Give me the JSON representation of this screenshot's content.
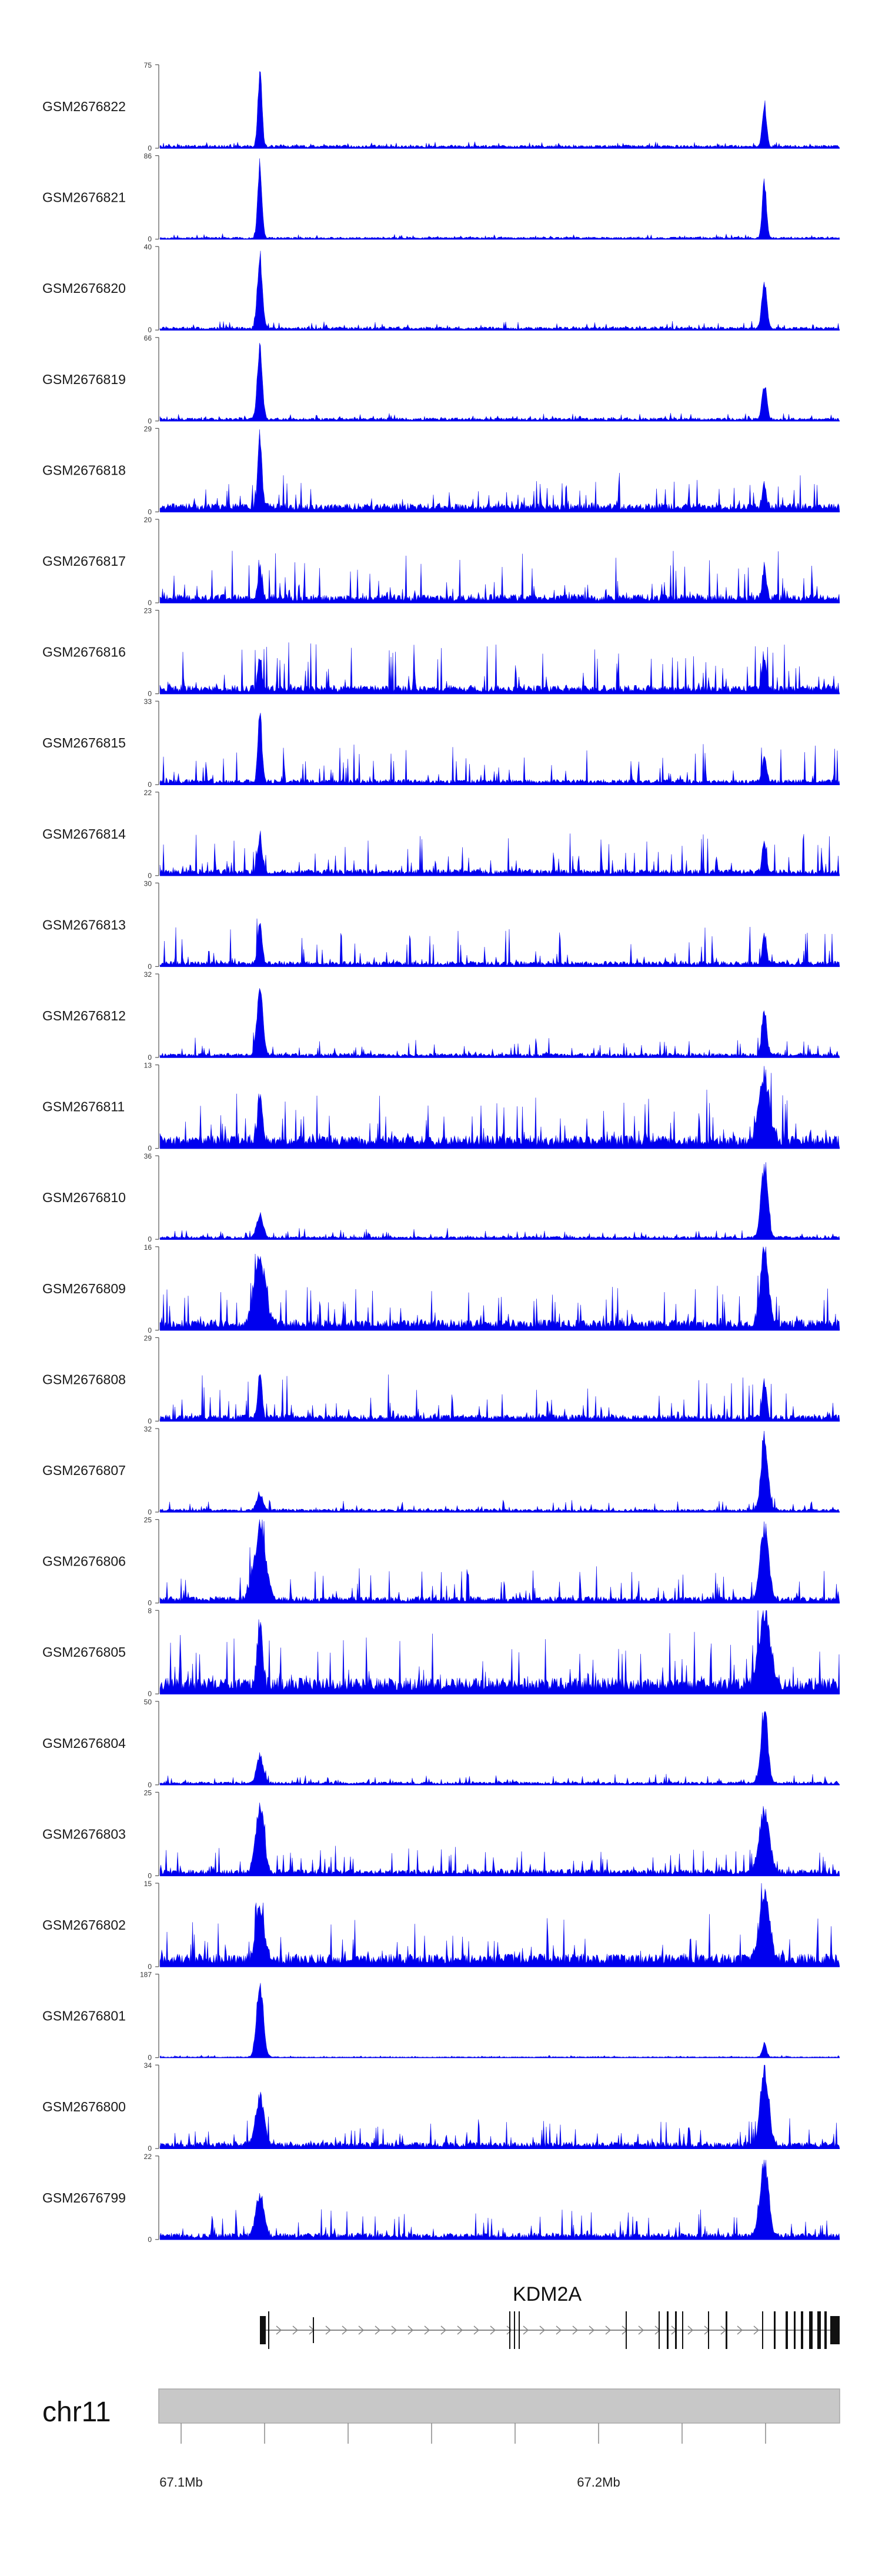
{
  "chart_data": {
    "type": "area",
    "tracks": [
      {
        "name": "GSM2676822",
        "ymin": 0,
        "ymax": 75
      },
      {
        "name": "GSM2676821",
        "ymin": 0,
        "ymax": 86
      },
      {
        "name": "GSM2676820",
        "ymin": 0,
        "ymax": 40
      },
      {
        "name": "GSM2676819",
        "ymin": 0,
        "ymax": 66
      },
      {
        "name": "GSM2676818",
        "ymin": 0,
        "ymax": 29
      },
      {
        "name": "GSM2676817",
        "ymin": 0,
        "ymax": 20
      },
      {
        "name": "GSM2676816",
        "ymin": 0,
        "ymax": 23
      },
      {
        "name": "GSM2676815",
        "ymin": 0,
        "ymax": 33
      },
      {
        "name": "GSM2676814",
        "ymin": 0,
        "ymax": 22
      },
      {
        "name": "GSM2676813",
        "ymin": 0,
        "ymax": 30
      },
      {
        "name": "GSM2676812",
        "ymin": 0,
        "ymax": 32
      },
      {
        "name": "GSM2676811",
        "ymin": 0,
        "ymax": 13
      },
      {
        "name": "GSM2676810",
        "ymin": 0,
        "ymax": 36
      },
      {
        "name": "GSM2676809",
        "ymin": 0,
        "ymax": 16
      },
      {
        "name": "GSM2676808",
        "ymin": 0,
        "ymax": 29
      },
      {
        "name": "GSM2676807",
        "ymin": 0,
        "ymax": 32
      },
      {
        "name": "GSM2676806",
        "ymin": 0,
        "ymax": 25
      },
      {
        "name": "GSM2676805",
        "ymin": 0,
        "ymax": 8
      },
      {
        "name": "GSM2676804",
        "ymin": 0,
        "ymax": 50
      },
      {
        "name": "GSM2676803",
        "ymin": 0,
        "ymax": 25
      },
      {
        "name": "GSM2676802",
        "ymin": 0,
        "ymax": 15
      },
      {
        "name": "GSM2676801",
        "ymin": 0,
        "ymax": 187
      },
      {
        "name": "GSM2676800",
        "ymin": 0,
        "ymax": 34
      },
      {
        "name": "GSM2676799",
        "ymin": 0,
        "ymax": 22
      }
    ],
    "gene": {
      "name": "KDM2A",
      "strand": "+"
    },
    "chromosome": "chr11",
    "x_tick_labels": [
      "67.1Mb",
      "67.2Mb"
    ],
    "color": "#0000ee",
    "legend": "none",
    "grid": false
  }
}
